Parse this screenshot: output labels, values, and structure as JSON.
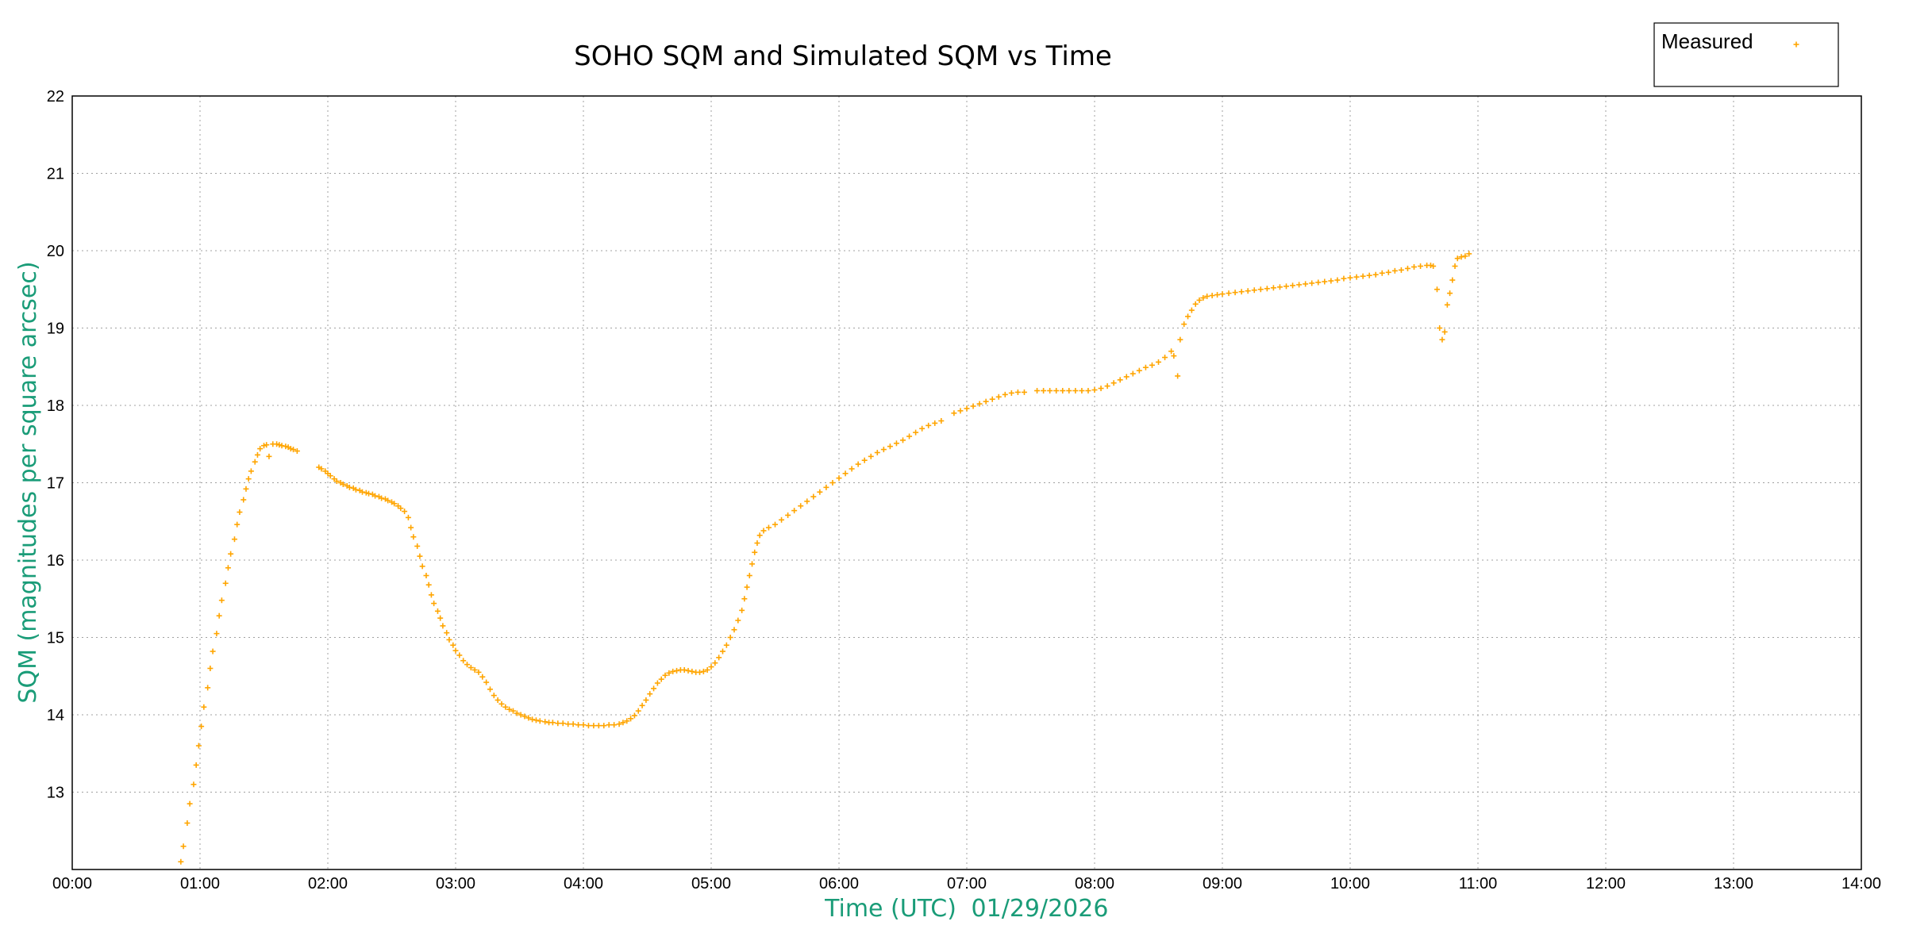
{
  "chart_data": {
    "type": "scatter",
    "title": "SOHO SQM and Simulated SQM vs Time",
    "xlabel": "Time (UTC)",
    "xlabel_date": "01/29/2026",
    "ylabel": "SQM (magnitudes per square arcsec)",
    "x_unit": "hours UTC",
    "xlim": [
      0,
      14
    ],
    "ylim": [
      12,
      22
    ],
    "x_ticks": [
      "00:00",
      "01:00",
      "02:00",
      "03:00",
      "04:00",
      "05:00",
      "06:00",
      "07:00",
      "08:00",
      "09:00",
      "10:00",
      "11:00",
      "12:00",
      "13:00",
      "14:00"
    ],
    "y_ticks": [
      "13",
      "14",
      "15",
      "16",
      "17",
      "18",
      "19",
      "20",
      "21",
      "22"
    ],
    "grid": true,
    "legend_position": "top-right",
    "axis_label_color": "#1a9c78",
    "series": [
      {
        "name": "Measured",
        "color": "#ffa500",
        "marker": "plus",
        "points": [
          [
            0.85,
            12.1
          ],
          [
            0.87,
            12.3
          ],
          [
            0.9,
            12.6
          ],
          [
            0.92,
            12.85
          ],
          [
            0.95,
            13.1
          ],
          [
            0.97,
            13.35
          ],
          [
            0.99,
            13.6
          ],
          [
            1.01,
            13.85
          ],
          [
            1.03,
            14.1
          ],
          [
            1.06,
            14.35
          ],
          [
            1.08,
            14.6
          ],
          [
            1.1,
            14.82
          ],
          [
            1.13,
            15.05
          ],
          [
            1.15,
            15.28
          ],
          [
            1.17,
            15.48
          ],
          [
            1.2,
            15.7
          ],
          [
            1.22,
            15.9
          ],
          [
            1.24,
            16.08
          ],
          [
            1.27,
            16.27
          ],
          [
            1.29,
            16.46
          ],
          [
            1.31,
            16.62
          ],
          [
            1.34,
            16.78
          ],
          [
            1.36,
            16.92
          ],
          [
            1.38,
            17.05
          ],
          [
            1.4,
            17.15
          ],
          [
            1.43,
            17.27
          ],
          [
            1.45,
            17.36
          ],
          [
            1.47,
            17.44
          ],
          [
            1.5,
            17.48
          ],
          [
            1.52,
            17.49
          ],
          [
            1.54,
            17.34
          ],
          [
            1.57,
            17.5
          ],
          [
            1.6,
            17.5
          ],
          [
            1.62,
            17.49
          ],
          [
            1.64,
            17.48
          ],
          [
            1.67,
            17.47
          ],
          [
            1.69,
            17.46
          ],
          [
            1.71,
            17.44
          ],
          [
            1.73,
            17.43
          ],
          [
            1.76,
            17.41
          ],
          [
            1.93,
            17.2
          ],
          [
            1.95,
            17.18
          ],
          [
            1.98,
            17.15
          ],
          [
            2.0,
            17.12
          ],
          [
            2.02,
            17.09
          ],
          [
            2.05,
            17.05
          ],
          [
            2.07,
            17.02
          ],
          [
            2.1,
            17.0
          ],
          [
            2.12,
            16.98
          ],
          [
            2.15,
            16.96
          ],
          [
            2.17,
            16.94
          ],
          [
            2.2,
            16.93
          ],
          [
            2.22,
            16.91
          ],
          [
            2.25,
            16.9
          ],
          [
            2.27,
            16.88
          ],
          [
            2.3,
            16.87
          ],
          [
            2.32,
            16.86
          ],
          [
            2.35,
            16.85
          ],
          [
            2.37,
            16.83
          ],
          [
            2.4,
            16.82
          ],
          [
            2.42,
            16.8
          ],
          [
            2.45,
            16.79
          ],
          [
            2.47,
            16.77
          ],
          [
            2.5,
            16.75
          ],
          [
            2.52,
            16.73
          ],
          [
            2.55,
            16.7
          ],
          [
            2.57,
            16.67
          ],
          [
            2.6,
            16.63
          ],
          [
            2.63,
            16.55
          ],
          [
            2.65,
            16.42
          ],
          [
            2.67,
            16.3
          ],
          [
            2.7,
            16.18
          ],
          [
            2.72,
            16.05
          ],
          [
            2.74,
            15.92
          ],
          [
            2.77,
            15.8
          ],
          [
            2.79,
            15.68
          ],
          [
            2.81,
            15.55
          ],
          [
            2.83,
            15.44
          ],
          [
            2.86,
            15.34
          ],
          [
            2.88,
            15.25
          ],
          [
            2.9,
            15.15
          ],
          [
            2.93,
            15.06
          ],
          [
            2.95,
            14.97
          ],
          [
            2.98,
            14.9
          ],
          [
            3.0,
            14.83
          ],
          [
            3.03,
            14.77
          ],
          [
            3.06,
            14.7
          ],
          [
            3.09,
            14.65
          ],
          [
            3.12,
            14.61
          ],
          [
            3.15,
            14.58
          ],
          [
            3.18,
            14.55
          ],
          [
            3.21,
            14.49
          ],
          [
            3.24,
            14.42
          ],
          [
            3.27,
            14.33
          ],
          [
            3.3,
            14.25
          ],
          [
            3.33,
            14.19
          ],
          [
            3.36,
            14.14
          ],
          [
            3.39,
            14.1
          ],
          [
            3.42,
            14.07
          ],
          [
            3.45,
            14.05
          ],
          [
            3.48,
            14.02
          ],
          [
            3.51,
            14.0
          ],
          [
            3.54,
            13.98
          ],
          [
            3.57,
            13.96
          ],
          [
            3.6,
            13.94
          ],
          [
            3.63,
            13.93
          ],
          [
            3.66,
            13.92
          ],
          [
            3.7,
            13.91
          ],
          [
            3.73,
            13.9
          ],
          [
            3.76,
            13.9
          ],
          [
            3.8,
            13.89
          ],
          [
            3.84,
            13.89
          ],
          [
            3.88,
            13.88
          ],
          [
            3.92,
            13.88
          ],
          [
            3.96,
            13.87
          ],
          [
            4.0,
            13.87
          ],
          [
            4.04,
            13.86
          ],
          [
            4.08,
            13.86
          ],
          [
            4.12,
            13.86
          ],
          [
            4.16,
            13.86
          ],
          [
            4.2,
            13.87
          ],
          [
            4.24,
            13.87
          ],
          [
            4.28,
            13.88
          ],
          [
            4.31,
            13.9
          ],
          [
            4.34,
            13.92
          ],
          [
            4.37,
            13.95
          ],
          [
            4.4,
            13.99
          ],
          [
            4.43,
            14.05
          ],
          [
            4.46,
            14.12
          ],
          [
            4.49,
            14.19
          ],
          [
            4.52,
            14.27
          ],
          [
            4.55,
            14.34
          ],
          [
            4.58,
            14.41
          ],
          [
            4.61,
            14.46
          ],
          [
            4.64,
            14.51
          ],
          [
            4.67,
            14.54
          ],
          [
            4.7,
            14.56
          ],
          [
            4.73,
            14.57
          ],
          [
            4.76,
            14.58
          ],
          [
            4.79,
            14.58
          ],
          [
            4.82,
            14.57
          ],
          [
            4.85,
            14.56
          ],
          [
            4.88,
            14.55
          ],
          [
            4.91,
            14.55
          ],
          [
            4.94,
            14.56
          ],
          [
            4.97,
            14.58
          ],
          [
            5.0,
            14.62
          ],
          [
            5.03,
            14.67
          ],
          [
            5.06,
            14.74
          ],
          [
            5.09,
            14.82
          ],
          [
            5.12,
            14.9
          ],
          [
            5.15,
            15.0
          ],
          [
            5.18,
            15.1
          ],
          [
            5.21,
            15.22
          ],
          [
            5.24,
            15.35
          ],
          [
            5.26,
            15.5
          ],
          [
            5.28,
            15.65
          ],
          [
            5.3,
            15.8
          ],
          [
            5.32,
            15.95
          ],
          [
            5.34,
            16.1
          ],
          [
            5.36,
            16.22
          ],
          [
            5.38,
            16.32
          ],
          [
            5.41,
            16.38
          ],
          [
            5.45,
            16.42
          ],
          [
            5.5,
            16.46
          ],
          [
            5.55,
            16.52
          ],
          [
            5.6,
            16.58
          ],
          [
            5.65,
            16.64
          ],
          [
            5.7,
            16.7
          ],
          [
            5.75,
            16.76
          ],
          [
            5.8,
            16.82
          ],
          [
            5.85,
            16.88
          ],
          [
            5.9,
            16.94
          ],
          [
            5.95,
            17.0
          ],
          [
            6.0,
            17.06
          ],
          [
            6.05,
            17.12
          ],
          [
            6.1,
            17.18
          ],
          [
            6.15,
            17.24
          ],
          [
            6.2,
            17.29
          ],
          [
            6.25,
            17.34
          ],
          [
            6.3,
            17.39
          ],
          [
            6.35,
            17.43
          ],
          [
            6.4,
            17.47
          ],
          [
            6.45,
            17.51
          ],
          [
            6.5,
            17.55
          ],
          [
            6.55,
            17.6
          ],
          [
            6.6,
            17.65
          ],
          [
            6.65,
            17.7
          ],
          [
            6.7,
            17.74
          ],
          [
            6.75,
            17.77
          ],
          [
            6.8,
            17.8
          ],
          [
            6.9,
            17.9
          ],
          [
            6.95,
            17.93
          ],
          [
            7.0,
            17.96
          ],
          [
            7.05,
            17.99
          ],
          [
            7.1,
            18.02
          ],
          [
            7.15,
            18.05
          ],
          [
            7.2,
            18.08
          ],
          [
            7.25,
            18.11
          ],
          [
            7.3,
            18.14
          ],
          [
            7.35,
            18.16
          ],
          [
            7.4,
            18.17
          ],
          [
            7.45,
            18.17
          ],
          [
            7.55,
            18.19
          ],
          [
            7.6,
            18.19
          ],
          [
            7.65,
            18.19
          ],
          [
            7.7,
            18.19
          ],
          [
            7.75,
            18.19
          ],
          [
            7.8,
            18.19
          ],
          [
            7.85,
            18.19
          ],
          [
            7.9,
            18.19
          ],
          [
            7.95,
            18.19
          ],
          [
            8.0,
            18.2
          ],
          [
            8.05,
            18.22
          ],
          [
            8.1,
            18.25
          ],
          [
            8.15,
            18.29
          ],
          [
            8.2,
            18.33
          ],
          [
            8.25,
            18.37
          ],
          [
            8.3,
            18.41
          ],
          [
            8.35,
            18.45
          ],
          [
            8.4,
            18.49
          ],
          [
            8.45,
            18.52
          ],
          [
            8.5,
            18.56
          ],
          [
            8.55,
            18.62
          ],
          [
            8.6,
            18.7
          ],
          [
            8.62,
            18.64
          ],
          [
            8.65,
            18.38
          ],
          [
            8.67,
            18.85
          ],
          [
            8.7,
            19.05
          ],
          [
            8.73,
            19.15
          ],
          [
            8.76,
            19.23
          ],
          [
            8.79,
            19.31
          ],
          [
            8.82,
            19.36
          ],
          [
            8.85,
            19.39
          ],
          [
            8.88,
            19.41
          ],
          [
            8.92,
            19.42
          ],
          [
            8.96,
            19.43
          ],
          [
            9.0,
            19.44
          ],
          [
            9.05,
            19.45
          ],
          [
            9.1,
            19.46
          ],
          [
            9.15,
            19.47
          ],
          [
            9.2,
            19.48
          ],
          [
            9.25,
            19.49
          ],
          [
            9.3,
            19.5
          ],
          [
            9.35,
            19.51
          ],
          [
            9.4,
            19.52
          ],
          [
            9.45,
            19.53
          ],
          [
            9.5,
            19.54
          ],
          [
            9.55,
            19.55
          ],
          [
            9.6,
            19.56
          ],
          [
            9.65,
            19.57
          ],
          [
            9.7,
            19.58
          ],
          [
            9.75,
            19.59
          ],
          [
            9.8,
            19.6
          ],
          [
            9.85,
            19.61
          ],
          [
            9.9,
            19.62
          ],
          [
            9.95,
            19.64
          ],
          [
            10.0,
            19.65
          ],
          [
            10.05,
            19.66
          ],
          [
            10.1,
            19.67
          ],
          [
            10.15,
            19.68
          ],
          [
            10.2,
            19.69
          ],
          [
            10.25,
            19.71
          ],
          [
            10.3,
            19.72
          ],
          [
            10.35,
            19.74
          ],
          [
            10.4,
            19.75
          ],
          [
            10.45,
            19.77
          ],
          [
            10.5,
            19.79
          ],
          [
            10.55,
            19.8
          ],
          [
            10.6,
            19.81
          ],
          [
            10.63,
            19.81
          ],
          [
            10.65,
            19.8
          ],
          [
            10.68,
            19.5
          ],
          [
            10.7,
            19.0
          ],
          [
            10.72,
            18.85
          ],
          [
            10.74,
            18.95
          ],
          [
            10.76,
            19.3
          ],
          [
            10.78,
            19.45
          ],
          [
            10.8,
            19.62
          ],
          [
            10.82,
            19.8
          ],
          [
            10.84,
            19.9
          ],
          [
            10.87,
            19.92
          ],
          [
            10.9,
            19.93
          ],
          [
            10.93,
            19.96
          ]
        ]
      }
    ]
  }
}
